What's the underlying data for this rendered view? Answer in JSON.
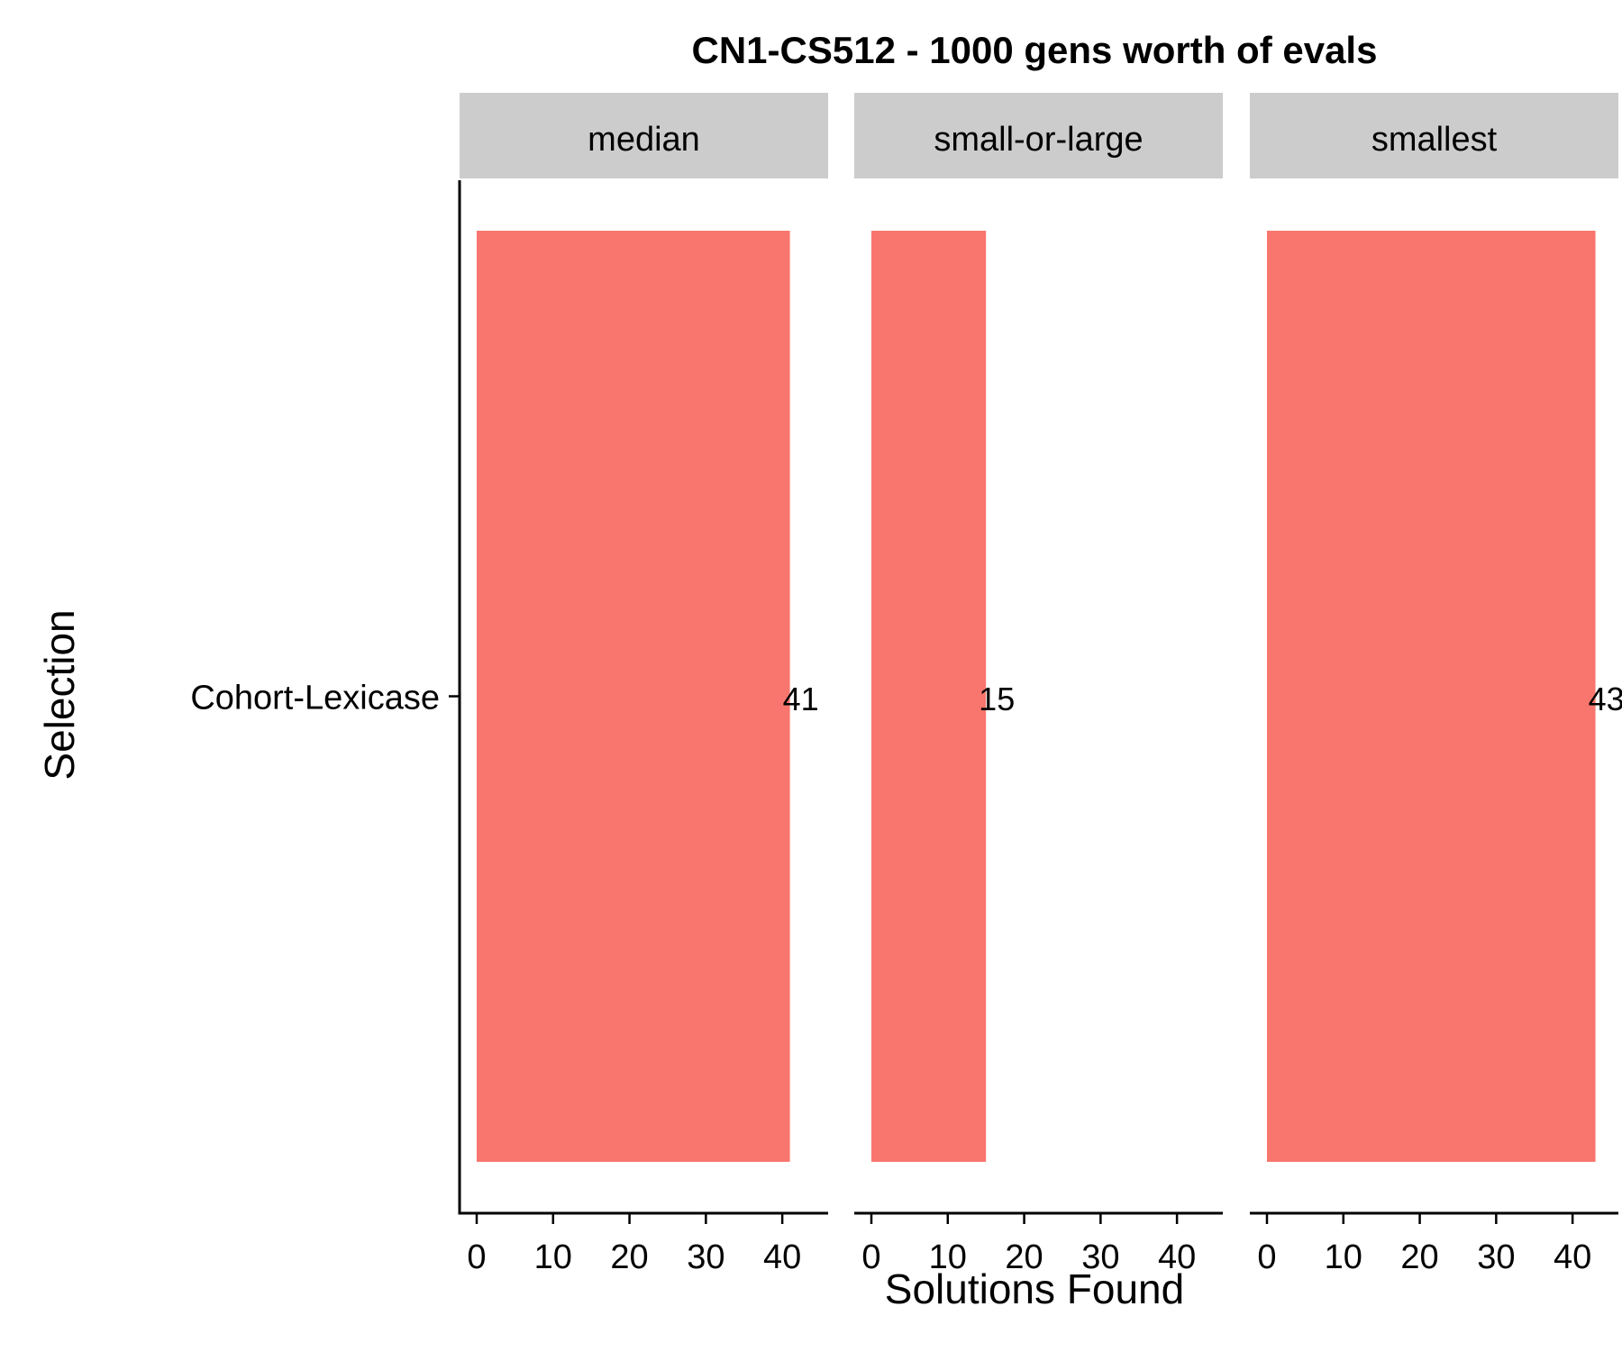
{
  "chart_data": {
    "type": "bar",
    "orientation": "horizontal",
    "title": "CN1-CS512 - 1000 gens worth of evals",
    "xlabel": "Solutions Found",
    "ylabel": "Selection",
    "categories": [
      "Cohort-Lexicase"
    ],
    "xlim": [
      0,
      46
    ],
    "x_ticks": [
      0,
      10,
      20,
      30,
      40
    ],
    "bar_color": "#F8766D",
    "strip_color": "#CCCCCC",
    "grid": false,
    "legend": "none",
    "facets": [
      {
        "label": "median",
        "values": [
          41
        ]
      },
      {
        "label": "small-or-large",
        "values": [
          15
        ]
      },
      {
        "label": "smallest",
        "values": [
          43
        ]
      }
    ]
  }
}
